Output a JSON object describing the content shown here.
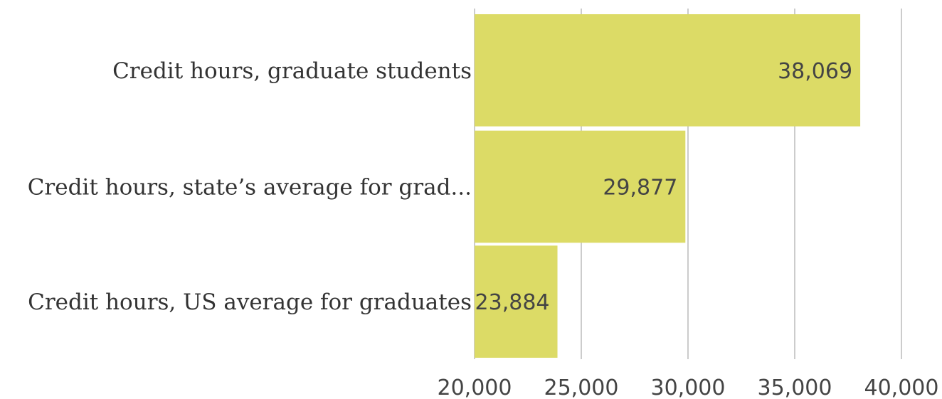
{
  "chart_data": {
    "type": "bar",
    "orientation": "horizontal",
    "categories": [
      "Credit hours, graduate students",
      "Credit hours, state’s average for grad...",
      "Credit hours, US average for graduates"
    ],
    "values": [
      38069,
      29877,
      23884
    ],
    "data_labels": [
      "38,069",
      "29,877",
      "23,884"
    ],
    "xlim": [
      20000,
      40000
    ],
    "x_ticks": [
      20000,
      25000,
      30000,
      35000,
      40000
    ],
    "x_tick_labels": [
      "20,000",
      "25,000",
      "30,000",
      "35,000",
      "40,000"
    ],
    "grid": true,
    "legend": "none",
    "bar_color": "#dcdb66",
    "grid_color": "#cccccc",
    "title": "",
    "xlabel": "",
    "ylabel": ""
  }
}
